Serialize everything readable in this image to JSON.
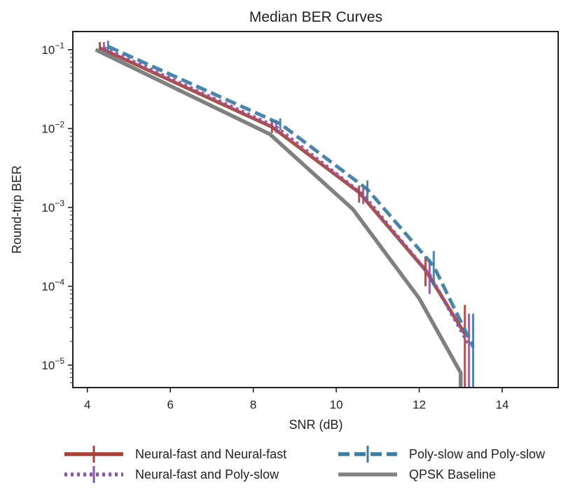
{
  "chart_data": {
    "type": "line",
    "title": "Median BER Curves",
    "xlabel": "SNR (dB)",
    "ylabel": "Round-trip BER",
    "xscale": "linear",
    "yscale": "log",
    "xlim": [
      3.65,
      15.35
    ],
    "ylim": [
      5.2e-06,
      0.17
    ],
    "xticks": [
      4,
      6,
      8,
      10,
      12,
      14
    ],
    "yticks": [
      {
        "value": 0.1,
        "base": "10",
        "exp": "−1"
      },
      {
        "value": 0.01,
        "base": "10",
        "exp": "−2"
      },
      {
        "value": 0.001,
        "base": "10",
        "exp": "−3"
      },
      {
        "value": 0.0001,
        "base": "10",
        "exp": "−4"
      },
      {
        "value": 1e-05,
        "base": "10",
        "exp": "−5"
      }
    ],
    "grid": false,
    "legend_position": "below",
    "series": [
      {
        "name": "Neural-fast and Neural-fast",
        "color": "#a9403a",
        "style": "solid",
        "errorbars": true,
        "points": [
          {
            "x": 4.3,
            "y": 0.105,
            "ylo": 0.09,
            "yhi": 0.125
          },
          {
            "x": 8.45,
            "y": 0.0105,
            "ylo": 0.0088,
            "yhi": 0.0128
          },
          {
            "x": 10.55,
            "y": 0.00155,
            "ylo": 0.00115,
            "yhi": 0.0019
          },
          {
            "x": 12.15,
            "y": 0.00016,
            "ylo": 0.0001,
            "yhi": 0.00024
          },
          {
            "x": 13.1,
            "y": 2.5e-05,
            "ylo": 5e-06,
            "yhi": 5.8e-05
          }
        ]
      },
      {
        "name": "Neural-fast and Poly-slow",
        "color": "#8a55a2",
        "style": "dotted",
        "errorbars": true,
        "points": [
          {
            "x": 4.4,
            "y": 0.105,
            "ylo": 0.09,
            "yhi": 0.125
          },
          {
            "x": 8.55,
            "y": 0.0105,
            "ylo": 0.0088,
            "yhi": 0.0128
          },
          {
            "x": 10.65,
            "y": 0.00145,
            "ylo": 0.0011,
            "yhi": 0.0018
          },
          {
            "x": 12.25,
            "y": 0.00014,
            "ylo": 8e-05,
            "yhi": 0.00022
          },
          {
            "x": 13.2,
            "y": 1.8e-05,
            "ylo": 5e-06,
            "yhi": 4.5e-05
          }
        ]
      },
      {
        "name": "Poly-slow and Poly-slow",
        "color": "#3f7aa1",
        "style": "dashed",
        "errorbars": true,
        "points": [
          {
            "x": 4.5,
            "y": 0.11,
            "ylo": 0.095,
            "yhi": 0.13
          },
          {
            "x": 8.65,
            "y": 0.0115,
            "ylo": 0.0095,
            "yhi": 0.0135
          },
          {
            "x": 10.75,
            "y": 0.0017,
            "ylo": 0.0012,
            "yhi": 0.0022
          },
          {
            "x": 12.35,
            "y": 0.00018,
            "ylo": 0.0001,
            "yhi": 0.00028
          },
          {
            "x": 13.3,
            "y": 1.7e-05,
            "ylo": 5e-06,
            "yhi": 4.5e-05
          }
        ]
      },
      {
        "name": "QPSK Baseline",
        "color": "#808080",
        "style": "solid",
        "errorbars": false,
        "points": [
          {
            "x": 4.2,
            "y": 0.1
          },
          {
            "x": 8.4,
            "y": 0.0085
          },
          {
            "x": 10.4,
            "y": 0.00095
          },
          {
            "x": 12.0,
            "y": 7e-05
          },
          {
            "x": 13.0,
            "y": 8e-06
          },
          {
            "x": 13.0,
            "y": 5.2e-06
          }
        ]
      }
    ]
  }
}
